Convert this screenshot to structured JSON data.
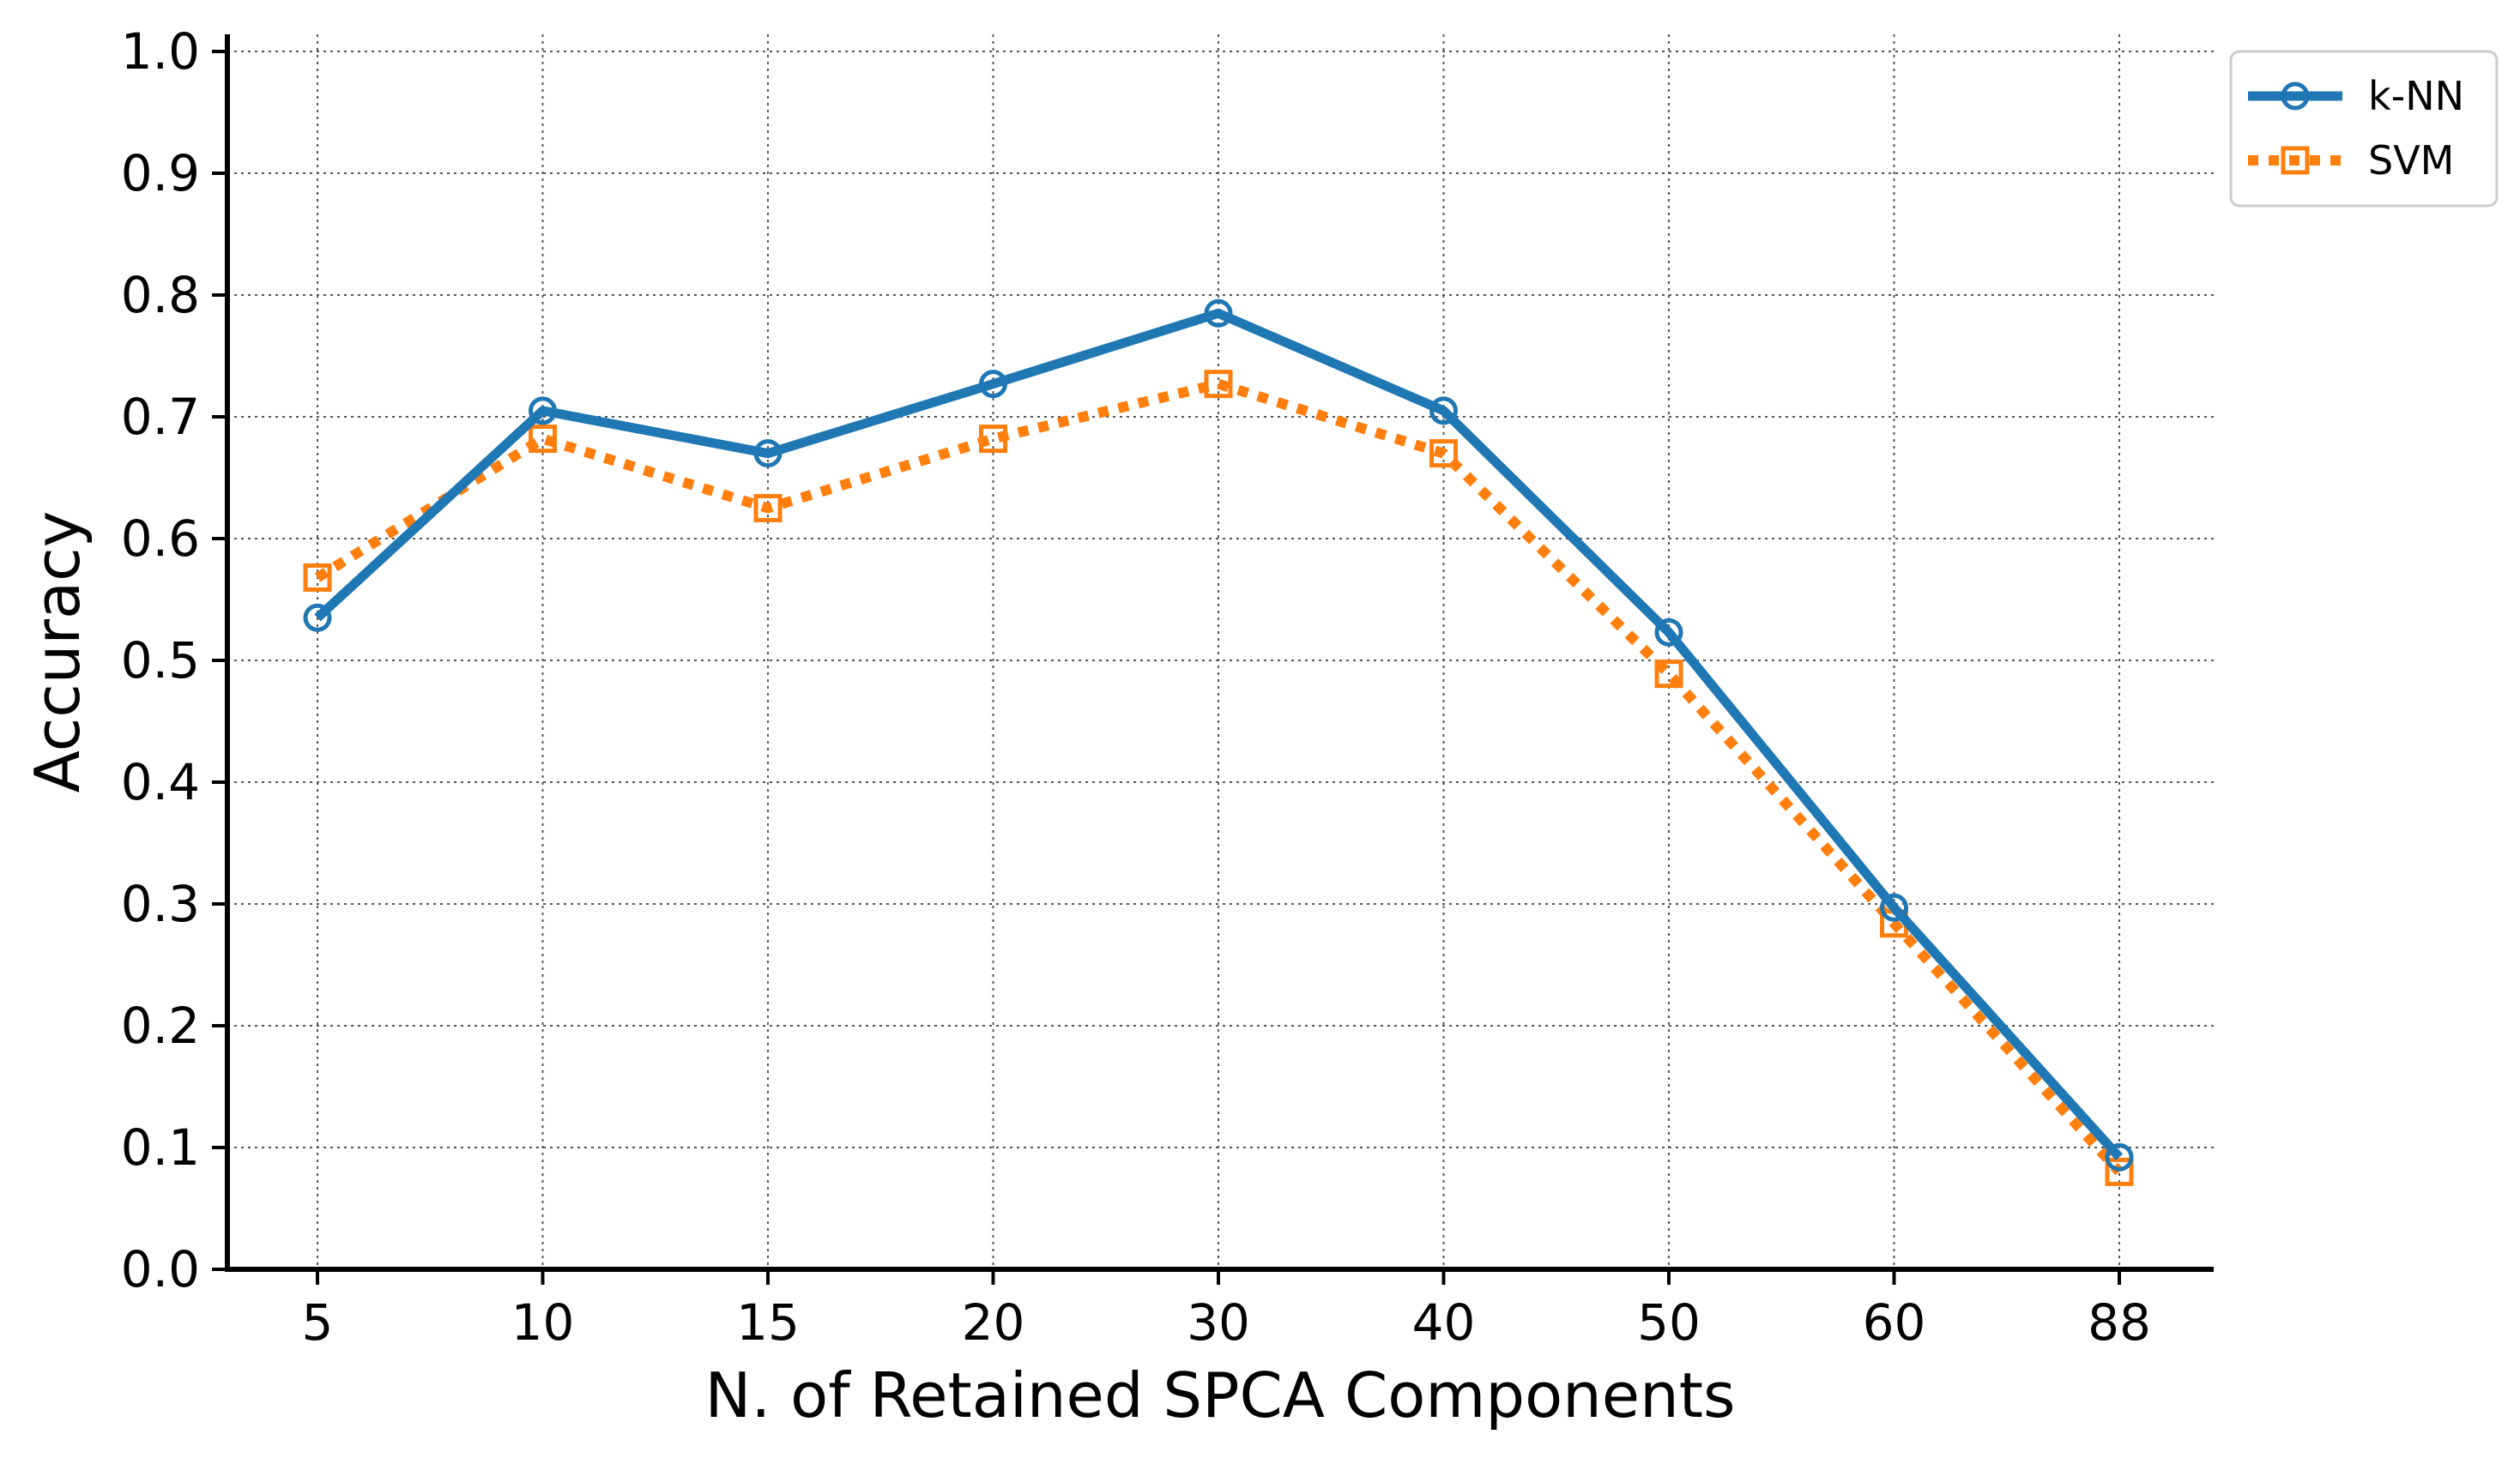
{
  "chart_data": {
    "type": "line",
    "title": "",
    "xlabel": "N. of Retained SPCA Components",
    "ylabel": "Accuracy",
    "categories": [
      "5",
      "10",
      "15",
      "20",
      "30",
      "40",
      "50",
      "60",
      "88"
    ],
    "ylim": [
      0.0,
      1.0
    ],
    "yticks": [
      "0.0",
      "0.1",
      "0.2",
      "0.3",
      "0.4",
      "0.5",
      "0.6",
      "0.7",
      "0.8",
      "0.9",
      "1.0"
    ],
    "grid": true,
    "legend_position": "top-right",
    "series": [
      {
        "name": "k-NN",
        "color": "#1f77b4",
        "line_style": "solid",
        "marker": "circle",
        "values": [
          0.535,
          0.705,
          0.67,
          0.727,
          0.785,
          0.705,
          0.523,
          0.297,
          0.092
        ]
      },
      {
        "name": "SVM",
        "color": "#ff7f0e",
        "line_style": "dotted",
        "marker": "square",
        "values": [
          0.568,
          0.682,
          0.625,
          0.682,
          0.727,
          0.67,
          0.489,
          0.284,
          0.08
        ]
      }
    ]
  }
}
